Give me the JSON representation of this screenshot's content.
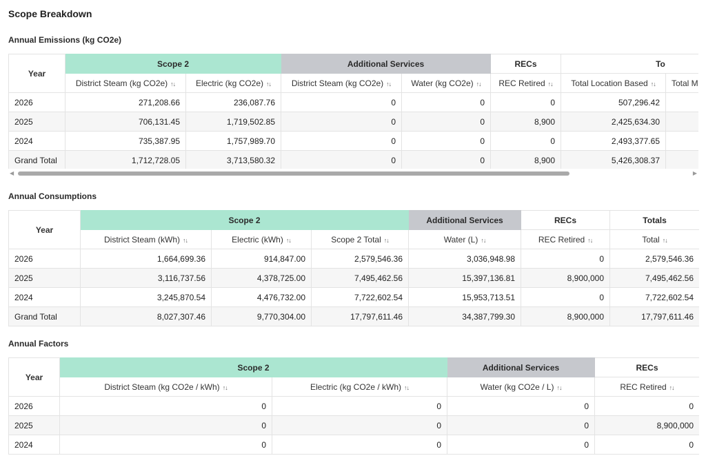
{
  "page_title": "Scope Breakdown",
  "emissions": {
    "title": "Annual Emissions (kg CO2e)",
    "groups": [
      "Scope 2",
      "Additional Services",
      "RECs",
      "To"
    ],
    "year_label": "Year",
    "columns": [
      "District Steam (kg CO2e)",
      "Electric (kg CO2e)",
      "District Steam (kg CO2e)",
      "Water (kg CO2e)",
      "REC Retired",
      "Total Location Based",
      "Total M"
    ],
    "rows": [
      [
        "2026",
        "271,208.66",
        "236,087.76",
        "0",
        "0",
        "0",
        "507,296.42",
        ""
      ],
      [
        "2025",
        "706,131.45",
        "1,719,502.85",
        "0",
        "0",
        "8,900",
        "2,425,634.30",
        ""
      ],
      [
        "2024",
        "735,387.95",
        "1,757,989.70",
        "0",
        "0",
        "0",
        "2,493,377.65",
        ""
      ],
      [
        "Grand Total",
        "1,712,728.05",
        "3,713,580.32",
        "0",
        "0",
        "8,900",
        "5,426,308.37",
        ""
      ]
    ]
  },
  "consumptions": {
    "title": "Annual Consumptions",
    "groups": [
      "Scope 2",
      "Additional Services",
      "RECs",
      "Totals"
    ],
    "year_label": "Year",
    "columns": [
      "District Steam (kWh)",
      "Electric (kWh)",
      "Scope 2 Total",
      "Water (L)",
      "REC Retired",
      "Total"
    ],
    "rows": [
      [
        "2026",
        "1,664,699.36",
        "914,847.00",
        "2,579,546.36",
        "3,036,948.98",
        "0",
        "2,579,546.36"
      ],
      [
        "2025",
        "3,116,737.56",
        "4,378,725.00",
        "7,495,462.56",
        "15,397,136.81",
        "8,900,000",
        "7,495,462.56"
      ],
      [
        "2024",
        "3,245,870.54",
        "4,476,732.00",
        "7,722,602.54",
        "15,953,713.51",
        "0",
        "7,722,602.54"
      ],
      [
        "Grand Total",
        "8,027,307.46",
        "9,770,304.00",
        "17,797,611.46",
        "34,387,799.30",
        "8,900,000",
        "17,797,611.46"
      ]
    ]
  },
  "factors": {
    "title": "Annual Factors",
    "groups": [
      "Scope 2",
      "Additional Services",
      "RECs"
    ],
    "year_label": "Year",
    "columns": [
      "District Steam (kg CO2e / kWh)",
      "Electric (kg CO2e / kWh)",
      "Water (kg CO2e / L)",
      "REC Retired"
    ],
    "rows": [
      [
        "2026",
        "0",
        "0",
        "0",
        "0"
      ],
      [
        "2025",
        "0",
        "0",
        "0",
        "8,900,000"
      ],
      [
        "2024",
        "0",
        "0",
        "0",
        "0"
      ]
    ]
  },
  "icons": {
    "sort": "sort-updown-icon",
    "scroll_left": "scroll-left-arrow-icon",
    "scroll_right": "scroll-right-arrow-icon"
  },
  "colors": {
    "scope_header": "#abe6d1",
    "additional_header": "#c6c8cd",
    "stripe": "#f6f6f6"
  }
}
